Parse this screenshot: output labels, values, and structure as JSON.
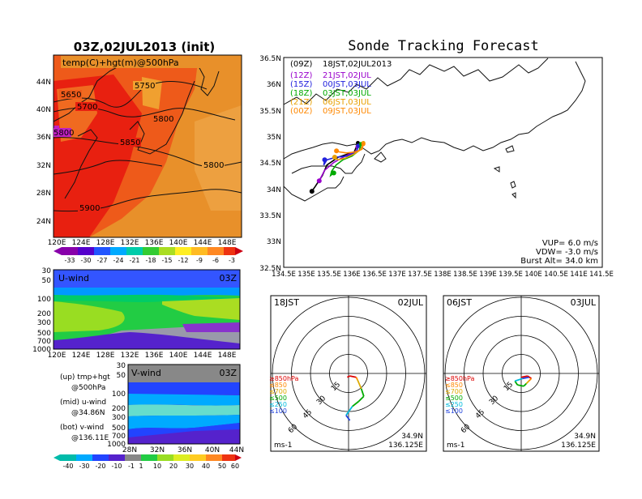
{
  "title": "Sonde Tracking Forecast",
  "left_panel": {
    "title": "03Z,02JUL2013 (init)",
    "map_label": "temp(C)+hgt(m)@500hPa",
    "lat_labels": [
      "44N",
      "40N",
      "36N",
      "32N",
      "28N",
      "24N"
    ],
    "lon_labels": [
      "120E",
      "124E",
      "128E",
      "132E",
      "136E",
      "140E",
      "144E",
      "148E"
    ],
    "contour_labels": [
      {
        "text": "5650"
      },
      {
        "text": "5700"
      },
      {
        "text": "5750"
      },
      {
        "text": "5800"
      },
      {
        "text": "5800"
      },
      {
        "text": "5850"
      },
      {
        "text": "5800"
      },
      {
        "text": "5900"
      }
    ],
    "temp_colorbar": {
      "labels": [
        "-33",
        "-30",
        "-27",
        "-24",
        "-21",
        "-18",
        "-15",
        "-12",
        "-9",
        "-6",
        "-3"
      ]
    }
  },
  "uwind_panel": {
    "label": "U-wind",
    "time": "03Z",
    "y_labels": [
      "30",
      "50",
      "100",
      "200",
      "300",
      "500",
      "700",
      "1000"
    ],
    "x_labels": [
      "120E",
      "124E",
      "128E",
      "132E",
      "136E",
      "140E",
      "144E",
      "148E"
    ]
  },
  "vwind_panel": {
    "label": "V-wind",
    "time": "03Z",
    "y_labels": [
      "30",
      "50",
      "100",
      "200",
      "300",
      "500",
      "700",
      "1000"
    ],
    "x_labels": [
      "28N",
      "32N",
      "36N",
      "40N",
      "44N"
    ]
  },
  "legend_text": {
    "up": "(up) tmp+hgt",
    "up2": "@500hPa",
    "mid": "(mid) u-wind",
    "mid2": "@34.86N",
    "bot": "(bot) v-wind",
    "bot2": "@136.11E"
  },
  "wind_colorbar": {
    "labels": [
      "-40",
      "-30",
      "-20",
      "-10",
      "-1",
      "1",
      "10",
      "20",
      "30",
      "40",
      "50",
      "60"
    ]
  },
  "track_panel": {
    "y_labels": [
      "36.5N",
      "36N",
      "35.5N",
      "35N",
      "34.5N",
      "34N",
      "33.5N",
      "33N",
      "32.5N"
    ],
    "x_labels": [
      "134.5E",
      "135E",
      "135.5E",
      "136E",
      "136.5E",
      "137E",
      "137.5E",
      "138E",
      "138.5E",
      "139E",
      "139.5E",
      "140E",
      "140.5E",
      "141E",
      "141.5E"
    ],
    "legend": [
      {
        "code": "(09Z)",
        "time": "18JST,02JUL2013",
        "color": "#000000"
      },
      {
        "code": "(12Z)",
        "time": "21JST,02JUL",
        "color": "#9900cc"
      },
      {
        "code": "(15Z)",
        "time": "00JST,03JUL",
        "color": "#2222dd"
      },
      {
        "code": "(18Z)",
        "time": "03JST,03JUL",
        "color": "#00aa00"
      },
      {
        "code": "(21Z)",
        "time": "06JST,03JUL",
        "color": "#e8a000"
      },
      {
        "code": "(00Z)",
        "time": "09JST,03JUL",
        "color": "#ff8800"
      }
    ],
    "info": [
      "VUP= 6.0 m/s",
      "VDW= -3.0 m/s",
      "Burst Alt= 34.0 km"
    ]
  },
  "hodo_left": {
    "time": "18JST",
    "date": "02JUL",
    "ring_labels": [
      "15",
      "30",
      "45",
      "60"
    ],
    "levels": [
      "≥850hPa",
      "≤850",
      "≤700",
      "≤500",
      "≤250",
      "≤100"
    ],
    "level_colors": [
      "#dd0000",
      "#ff8800",
      "#ddaa00",
      "#00aa00",
      "#00bbdd",
      "#2244dd"
    ],
    "unit": "ms-1",
    "lat": "34.9N",
    "lon": "136.125E"
  },
  "hodo_right": {
    "time": "06JST",
    "date": "03JUL",
    "ring_labels": [
      "15",
      "30",
      "45",
      "60"
    ],
    "levels": [
      "≥850hPa",
      "≤850",
      "≤700",
      "≤500",
      "≤250",
      "≤100"
    ],
    "level_colors": [
      "#dd0000",
      "#ff8800",
      "#ddaa00",
      "#00aa00",
      "#00bbdd",
      "#2244dd"
    ],
    "unit": "ms-1",
    "lat": "34.9N",
    "lon": "136.125E"
  },
  "chart_data": [
    {
      "type": "heatmap",
      "title": "03Z,02JUL2013 (init)",
      "subtitle": "temp(C)+hgt(m)@500hPa",
      "xlim": [
        120,
        150
      ],
      "ylim": [
        22,
        47
      ],
      "contours_m": [
        5650,
        5700,
        5750,
        5800,
        5850,
        5900
      ],
      "colorbar": [
        -33,
        -30,
        -27,
        -24,
        -21,
        -18,
        -15,
        -12,
        -9,
        -6,
        -3
      ]
    },
    {
      "type": "heatmap",
      "title": "U-wind",
      "subtitle": "03Z",
      "xlim": [
        120,
        150
      ],
      "ylim_hpa": [
        1000,
        30
      ]
    },
    {
      "type": "heatmap",
      "title": "V-wind",
      "subtitle": "03Z",
      "xlim": [
        28,
        44
      ],
      "ylim_hpa": [
        1000,
        30
      ]
    },
    {
      "type": "line",
      "title": "Sonde Tracking Forecast",
      "xlim": [
        134.5,
        141.5
      ],
      "ylim": [
        32.5,
        36.5
      ],
      "series": [
        {
          "name": "(09Z) 18JST,02JUL2013",
          "color": "#000000",
          "x": [
            136.13,
            136.05,
            135.7,
            135.45,
            135.35,
            135.2,
            135.12
          ],
          "y": [
            34.87,
            34.7,
            34.6,
            34.45,
            34.25,
            34.05,
            33.95
          ]
        },
        {
          "name": "(12Z) 21JST,02JUL",
          "color": "#9900cc",
          "x": [
            136.12,
            136.1,
            135.85,
            135.6,
            135.4,
            135.28
          ],
          "y": [
            34.8,
            34.72,
            34.62,
            34.5,
            34.35,
            34.15
          ]
        },
        {
          "name": "(15Z) 00JST,03JUL",
          "color": "#2222dd",
          "x": [
            136.14,
            136.1,
            135.9,
            135.65,
            135.45,
            135.38,
            135.4
          ],
          "y": [
            34.82,
            34.7,
            34.62,
            34.6,
            34.55,
            34.45,
            34.55
          ]
        },
        {
          "name": "(18Z) 03JST,03JUL",
          "color": "#00aa00",
          "x": [
            136.2,
            136.16,
            136.0,
            135.8,
            135.65,
            135.55,
            135.53,
            135.6
          ],
          "y": [
            34.85,
            34.73,
            34.62,
            34.55,
            34.45,
            34.33,
            34.25,
            34.3
          ]
        },
        {
          "name": "(21Z) 06JST,03JUL",
          "color": "#e8a000",
          "x": [
            136.25,
            136.2,
            136.05,
            135.85,
            135.7,
            135.62,
            135.62
          ],
          "y": [
            34.87,
            34.75,
            34.66,
            34.58,
            34.55,
            34.58,
            34.6
          ]
        },
        {
          "name": "(00Z) 09JST,03JUL",
          "color": "#ff8800",
          "x": [
            136.25,
            136.22,
            136.08,
            135.88,
            135.72,
            135.66
          ],
          "y": [
            34.85,
            34.75,
            34.7,
            34.68,
            34.7,
            34.72
          ]
        }
      ]
    },
    {
      "type": "line",
      "title": "18JST 02JUL",
      "rings": [
        15,
        30,
        45,
        60
      ],
      "u": [
        -1,
        1,
        6,
        7,
        10,
        12,
        8,
        3,
        -2,
        1
      ],
      "v": [
        -3,
        -2,
        -3,
        -5,
        -12,
        -18,
        -22,
        -26,
        -33,
        -37
      ]
    },
    {
      "type": "line",
      "title": "06JST 03JUL",
      "rings": [
        15,
        30,
        45,
        60
      ],
      "u": [
        0,
        5,
        8,
        6,
        4,
        2,
        -3,
        -5,
        1,
        6
      ],
      "v": [
        -3,
        -2,
        -4,
        -6,
        -8,
        -10,
        -9,
        -6,
        -4,
        -3
      ]
    }
  ]
}
